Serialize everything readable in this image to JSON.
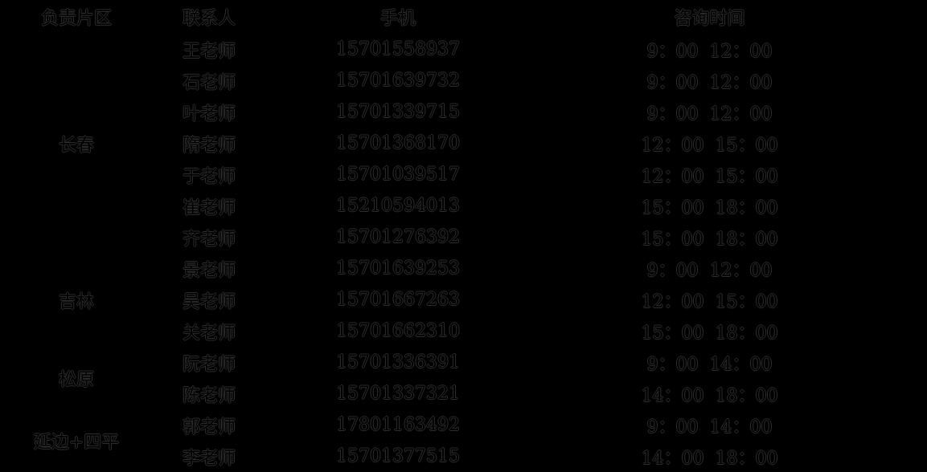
{
  "colors": {
    "background": "#000000",
    "text": "#000000",
    "text_edge": "#2d2d2d"
  },
  "table": {
    "headers": {
      "area": "负责片区",
      "contact": "联系人",
      "phone": "手机",
      "time": "咨询时间"
    },
    "groups": [
      {
        "area": "长春",
        "rows": [
          {
            "contact": "王老师",
            "phone": "15701558937",
            "time_start": "9：00",
            "time_end": "12：00"
          },
          {
            "contact": "石老师",
            "phone": "15701639732",
            "time_start": "9：00",
            "time_end": "12：00"
          },
          {
            "contact": "叶老师",
            "phone": "15701339715",
            "time_start": "9：00",
            "time_end": "12：00"
          },
          {
            "contact": "隋老师",
            "phone": "15701368170",
            "time_start": "12：00",
            "time_end": "15：00"
          },
          {
            "contact": "于老师",
            "phone": "15701039517",
            "time_start": "12：00",
            "time_end": "15：00"
          },
          {
            "contact": "崔老师",
            "phone": "15210594013",
            "time_start": "15：00",
            "time_end": "18：00"
          },
          {
            "contact": "齐老师",
            "phone": "15701276392",
            "time_start": "15：00",
            "time_end": "18：00"
          }
        ]
      },
      {
        "area": "吉林",
        "rows": [
          {
            "contact": "景老师",
            "phone": "15701639253",
            "time_start": "9：00",
            "time_end": "12：00"
          },
          {
            "contact": "吴老师",
            "phone": "15701667263",
            "time_start": "12：00",
            "time_end": "15：00"
          },
          {
            "contact": "关老师",
            "phone": "15701662310",
            "time_start": "15：00",
            "time_end": "18：00"
          }
        ]
      },
      {
        "area": "松原",
        "rows": [
          {
            "contact": "阮老师",
            "phone": "15701336391",
            "time_start": "9：00",
            "time_end": "14：00"
          },
          {
            "contact": "陈老师",
            "phone": "15701337321",
            "time_start": "14：00",
            "time_end": "18：00"
          }
        ]
      },
      {
        "area": "延边+四平",
        "rows": [
          {
            "contact": "郭老师",
            "phone": "17801163492",
            "time_start": "9：00",
            "time_end": "14：00"
          },
          {
            "contact": "李老师",
            "phone": "15701377515",
            "time_start": "14：00",
            "time_end": "18：00"
          }
        ]
      }
    ]
  }
}
